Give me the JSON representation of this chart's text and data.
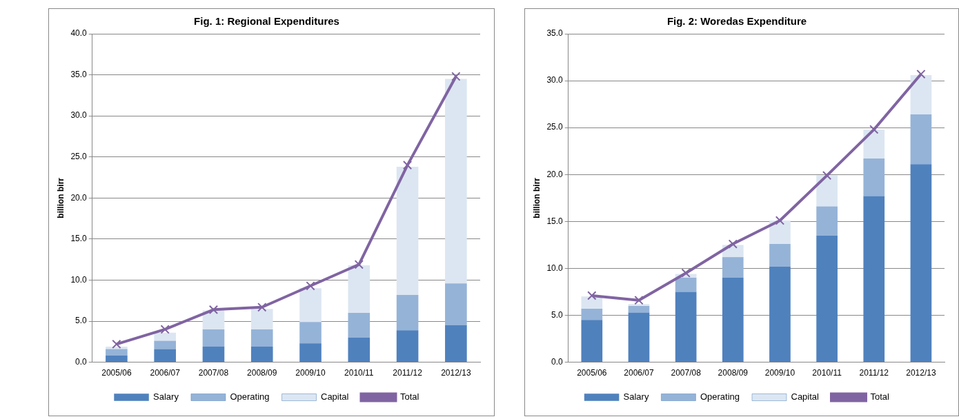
{
  "chart_data": [
    {
      "type": "bar",
      "title": "Fig. 1: Regional Expenditures",
      "ylabel": "billion birr",
      "stacked": true,
      "categories": [
        "2005/06",
        "2006/07",
        "2007/08",
        "2008/09",
        "2009/10",
        "2010/11",
        "2011/12",
        "2012/13"
      ],
      "series": [
        {
          "name": "Salary",
          "color": "#4f81bd",
          "values": [
            0.8,
            1.6,
            1.9,
            1.9,
            2.3,
            3.0,
            3.9,
            4.5
          ]
        },
        {
          "name": "Operating",
          "color": "#95b3d7",
          "values": [
            0.8,
            1.0,
            2.1,
            2.1,
            2.6,
            3.0,
            4.3,
            5.1
          ]
        },
        {
          "name": "Capital",
          "color": "#dce6f2",
          "values": [
            0.3,
            1.0,
            2.3,
            2.5,
            4.1,
            5.8,
            15.6,
            24.9
          ]
        },
        {
          "name": "Total",
          "type": "line",
          "color": "#8064a2",
          "marker": "cross",
          "values": [
            2.2,
            4.0,
            6.4,
            6.7,
            9.3,
            11.9,
            24.0,
            34.8
          ]
        }
      ],
      "ylim": [
        0,
        40
      ],
      "yticks": [
        {
          "value": 0,
          "label": "0.0"
        },
        {
          "value": 5,
          "label": "5.0"
        },
        {
          "value": 10,
          "label": "10.0"
        },
        {
          "value": 15,
          "label": "15.0"
        },
        {
          "value": 20,
          "label": "20.0"
        },
        {
          "value": 25,
          "label": "25.0"
        },
        {
          "value": 30,
          "label": "30.0"
        },
        {
          "value": 35,
          "label": "35.0"
        },
        {
          "value": 40,
          "label": "40.0"
        }
      ],
      "grid": "y",
      "legend": "bottom"
    },
    {
      "type": "bar",
      "title": "Fig. 2: Woredas Expenditure",
      "ylabel": "billion birr",
      "stacked": true,
      "categories": [
        "2005/06",
        "2006/07",
        "2007/08",
        "2008/09",
        "2009/10",
        "2010/11",
        "2011/12",
        "2012/13"
      ],
      "series": [
        {
          "name": "Salary",
          "color": "#4f81bd",
          "values": [
            4.5,
            5.3,
            7.5,
            9.0,
            10.2,
            13.5,
            17.7,
            21.1
          ]
        },
        {
          "name": "Operating",
          "color": "#95b3d7",
          "values": [
            1.2,
            0.7,
            1.5,
            2.2,
            2.4,
            3.1,
            4.0,
            5.3
          ]
        },
        {
          "name": "Capital",
          "color": "#dce6f2",
          "values": [
            1.3,
            0.2,
            0.4,
            1.3,
            2.5,
            3.3,
            3.1,
            4.2
          ]
        },
        {
          "name": "Total",
          "type": "line",
          "color": "#8064a2",
          "marker": "cross",
          "values": [
            7.1,
            6.6,
            9.5,
            12.6,
            15.1,
            19.9,
            24.8,
            30.7
          ]
        }
      ],
      "ylim": [
        0,
        35
      ],
      "yticks": [
        {
          "value": 0,
          "label": "0.0"
        },
        {
          "value": 5,
          "label": "5.0"
        },
        {
          "value": 10,
          "label": "10.0"
        },
        {
          "value": 15,
          "label": "15.0"
        },
        {
          "value": 20,
          "label": "20.0"
        },
        {
          "value": 25,
          "label": "25.0"
        },
        {
          "value": 30,
          "label": "30.0"
        },
        {
          "value": 35,
          "label": "35.0"
        }
      ],
      "grid": "y",
      "legend": "bottom"
    }
  ]
}
